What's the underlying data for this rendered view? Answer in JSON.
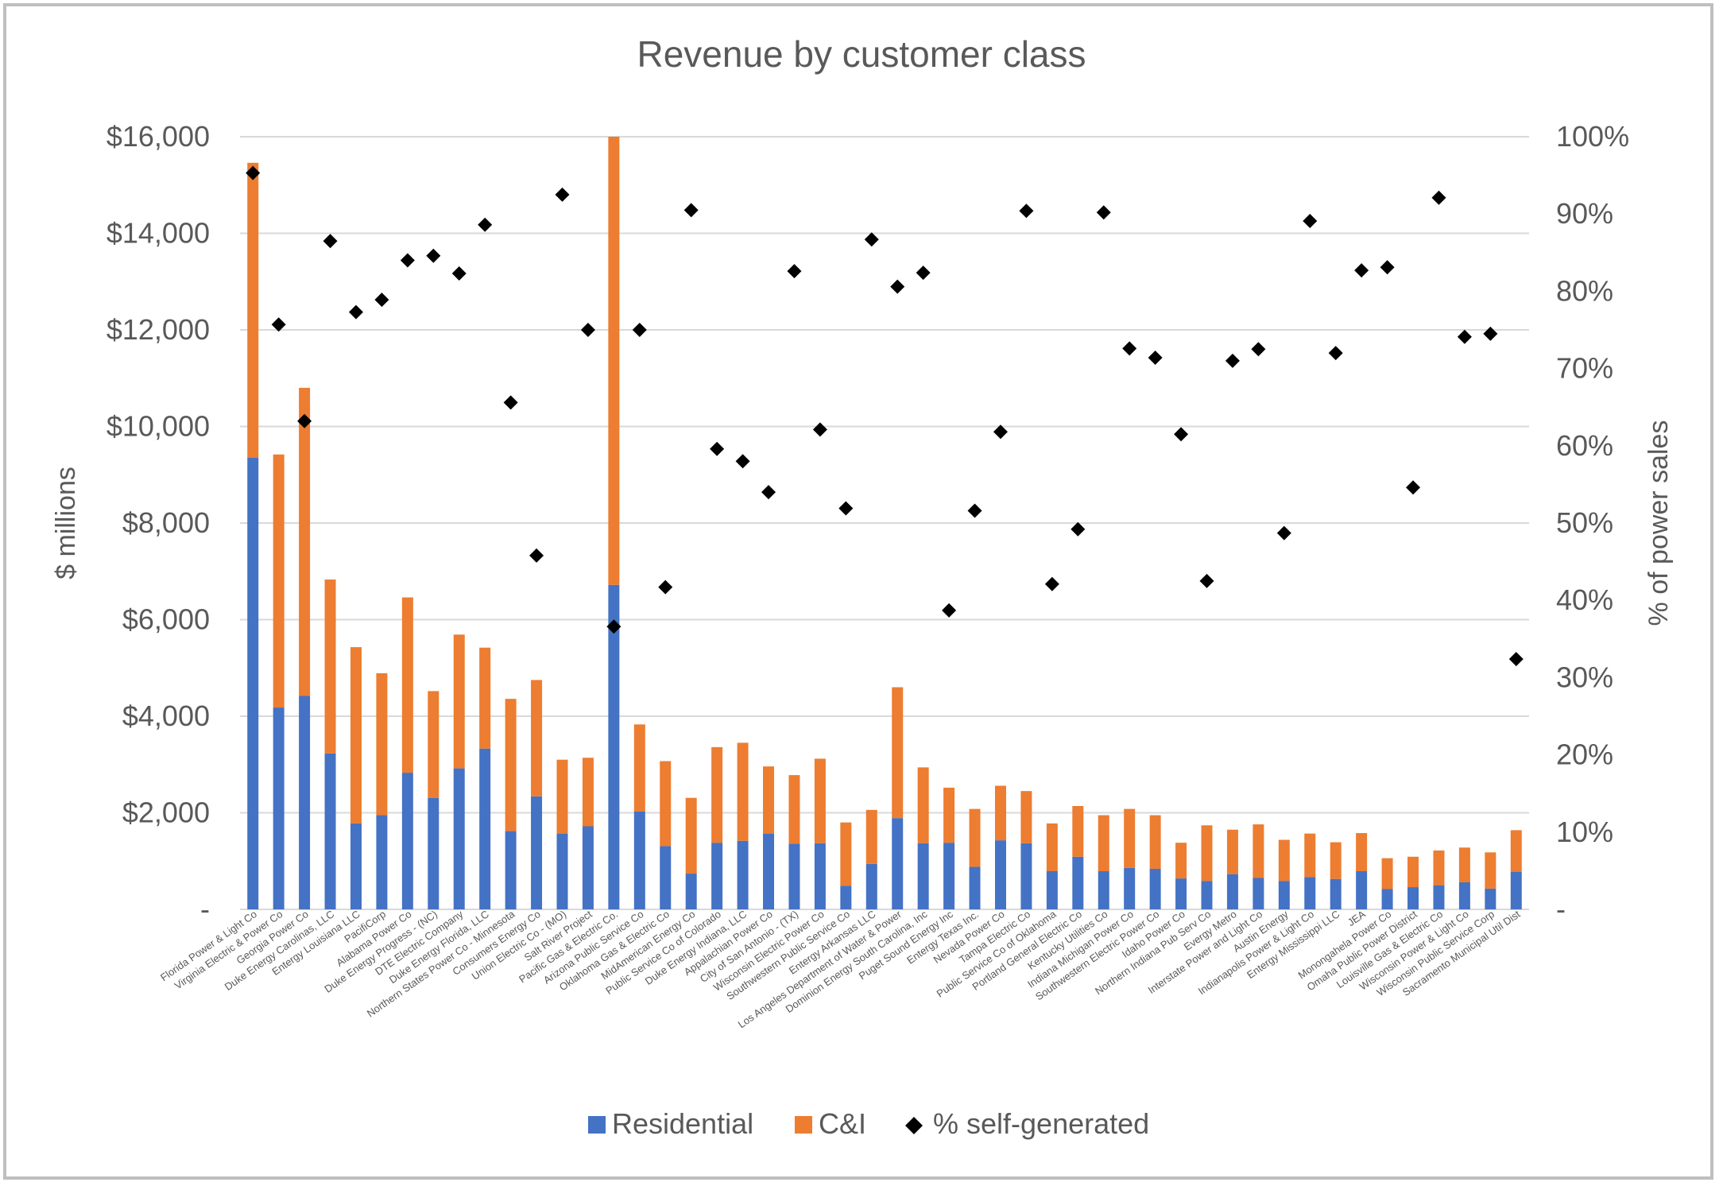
{
  "chart_data": {
    "type": "bar",
    "title": "Revenue by customer class",
    "ylabel": "$ millions",
    "y2label": "% of power sales",
    "ylim": [
      0,
      16000
    ],
    "y2lim": [
      0,
      100
    ],
    "yticks": [
      "-",
      "$2,000",
      "$4,000",
      "$6,000",
      "$8,000",
      "$10,000",
      "$12,000",
      "$14,000",
      "$16,000"
    ],
    "y2ticks": [
      "-",
      "10%",
      "20%",
      "30%",
      "40%",
      "50%",
      "60%",
      "70%",
      "80%",
      "90%",
      "100%"
    ],
    "grid": true,
    "stacked": true,
    "legend_position": "bottom",
    "categories": [
      "Florida Power & Light Co",
      "Virginia Electric & Power Co",
      "Georgia Power Co",
      "Duke Energy Carolinas, LLC",
      "Entergy Louisiana LLC",
      "PacifiCorp",
      "Alabama Power Co",
      "Duke Energy Progress - (NC)",
      "DTE Electric Company",
      "Duke Energy Florida, LLC",
      "Northern States Power Co - Minnesota",
      "Consumers Energy Co",
      "Union Electric Co - (MO)",
      "Salt River Project",
      "Pacific Gas & Electric Co.",
      "Arizona Public Service Co",
      "Oklahoma Gas & Electric Co",
      "MidAmerican Energy Co",
      "Public Service Co of Colorado",
      "Duke Energy Indiana, LLC",
      "Appalachian Power Co",
      "City of San Antonio - (TX)",
      "Wisconsin Electric Power Co",
      "Southwestern Public Service Co",
      "Entergy Arkansas LLC",
      "Los Angeles Department of Water & Power",
      "Dominion Energy South Carolina, Inc",
      "Puget Sound Energy Inc",
      "Entergy Texas Inc.",
      "Nevada Power Co",
      "Tampa Electric Co",
      "Public Service Co of Oklahoma",
      "Portland General Electric Co",
      "Kentucky Utilities Co",
      "Indiana Michigan Power Co",
      "Southwestern Electric Power Co",
      "Idaho Power Co",
      "Northern Indiana Pub Serv Co",
      "Evergy Metro",
      "Interstate Power and Light Co",
      "Austin Energy",
      "Indianapolis Power & Light Co",
      "Entergy Mississippi LLC",
      "JEA",
      "Monongahela Power Co",
      "Omaha Public Power District",
      "Louisville Gas & Electric Co",
      "Wisconsin Power & Light Co",
      "Wisconsin Public Service Corp",
      "Sacramento Municipal Util Dist"
    ],
    "series": [
      {
        "name": "Residential",
        "kind": "bar",
        "axis": "left",
        "color": "#4472c4",
        "values": [
          9350,
          4180,
          4420,
          3230,
          1780,
          1950,
          2830,
          2310,
          2920,
          3330,
          1620,
          2340,
          1570,
          1720,
          6720,
          2030,
          1310,
          740,
          1380,
          1420,
          1570,
          1360,
          1370,
          490,
          940,
          1890,
          1370,
          1380,
          880,
          1430,
          1370,
          790,
          1090,
          790,
          860,
          840,
          640,
          590,
          730,
          650,
          590,
          670,
          630,
          790,
          420,
          460,
          500,
          560,
          430,
          780
        ]
      },
      {
        "name": "C&I",
        "kind": "bar",
        "axis": "left",
        "color": "#ed7d31",
        "values": [
          6110,
          5240,
          6380,
          3600,
          3650,
          2940,
          3630,
          2210,
          2770,
          2090,
          2740,
          2410,
          1530,
          1420,
          9280,
          1800,
          1760,
          1570,
          1980,
          2030,
          1390,
          1420,
          1750,
          1310,
          1120,
          2710,
          1570,
          1140,
          1200,
          1130,
          1080,
          990,
          1050,
          1160,
          1220,
          1110,
          740,
          1150,
          920,
          1110,
          850,
          900,
          760,
          790,
          640,
          630,
          720,
          720,
          750,
          860
        ]
      },
      {
        "name": "% self-generated",
        "kind": "scatter",
        "axis": "right",
        "color": "#000000",
        "marker": "diamond",
        "values": [
          95.3,
          75.7,
          63.2,
          86.5,
          77.3,
          78.9,
          84.0,
          84.6,
          82.3,
          88.6,
          65.6,
          45.8,
          92.5,
          75.0,
          36.6,
          75.0,
          41.7,
          90.5,
          59.6,
          58.0,
          54.0,
          82.6,
          62.1,
          51.9,
          86.7,
          80.6,
          82.4,
          38.7,
          51.6,
          61.8,
          90.4,
          42.1,
          49.2,
          90.2,
          72.6,
          71.4,
          61.5,
          42.5,
          71.0,
          72.5,
          48.7,
          89.1,
          72.0,
          82.7,
          83.1,
          54.6,
          92.1,
          74.1,
          74.5,
          32.4
        ]
      }
    ]
  }
}
